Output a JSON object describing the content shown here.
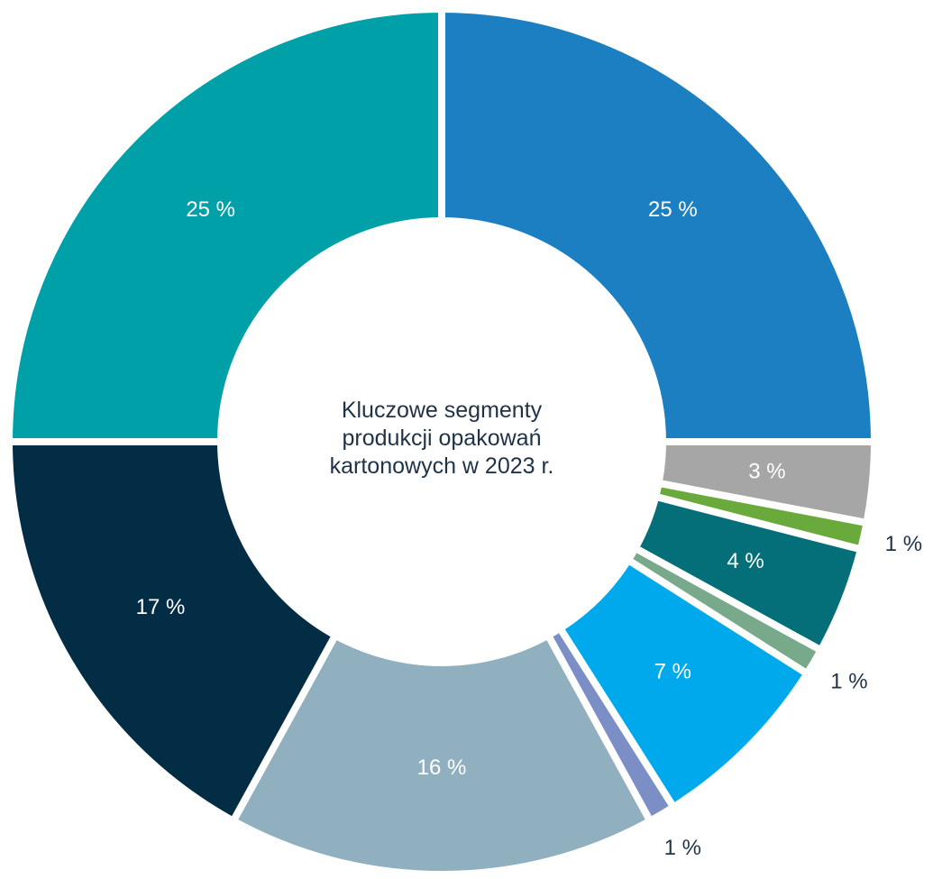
{
  "chart_data": {
    "type": "donut",
    "title": "Kluczowe segmenty produkcji opakowań kartonowych w 2023 r.",
    "values": [
      25,
      3,
      1,
      4,
      1,
      7,
      1,
      16,
      17,
      25
    ],
    "value_labels": [
      "25 %",
      "3 %",
      "1 %",
      "4 %",
      "1 %",
      "7 %",
      "1 %",
      "16 %",
      "17 %",
      "25 %"
    ],
    "colors": [
      "#1b7fc2",
      "#a6a6a6",
      "#6aa93b",
      "#046f79",
      "#79a98b",
      "#00a9ec",
      "#7b8ec6",
      "#90b0c0",
      "#032c45",
      "#00a0a9"
    ]
  }
}
